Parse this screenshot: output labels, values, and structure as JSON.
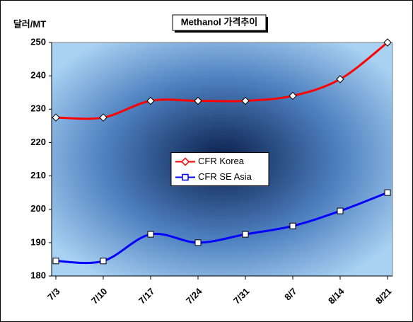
{
  "chart_data": {
    "type": "line",
    "title": "Methanol 가격추이",
    "y_label": "달러/MT",
    "categories": [
      "7/3",
      "7/10",
      "7/17",
      "7/24",
      "7/31",
      "8/7",
      "8/14",
      "8/21"
    ],
    "series": [
      {
        "name": "CFR Korea",
        "color": "#ff0000",
        "marker": "diamond",
        "values": [
          227.5,
          227.5,
          232.5,
          232.5,
          232.5,
          234,
          239,
          250
        ]
      },
      {
        "name": "CFR SE Asia",
        "color": "#0000ff",
        "marker": "square",
        "values": [
          184.5,
          184.5,
          192.5,
          190,
          192.5,
          195,
          199.5,
          205
        ]
      }
    ],
    "ylim": [
      180,
      250
    ],
    "yticks": [
      180,
      190,
      200,
      210,
      220,
      230,
      240,
      250
    ],
    "grid": true,
    "legend": "center"
  }
}
